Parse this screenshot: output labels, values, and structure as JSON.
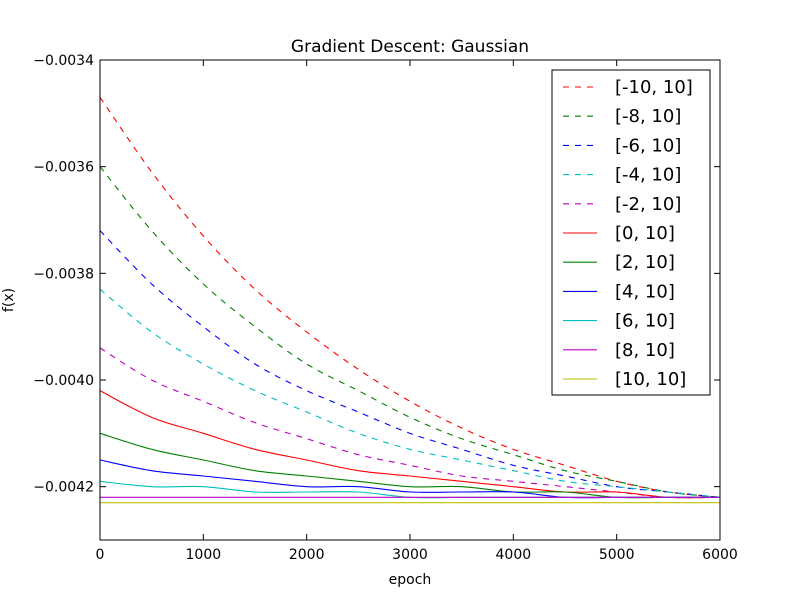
{
  "chart_data": {
    "type": "line",
    "title": "Gradient Descent: Gaussian",
    "xlabel": "epoch",
    "ylabel": "f(x)",
    "xlim": [
      0,
      6000
    ],
    "ylim": [
      -0.0043,
      -0.0034
    ],
    "xticks": [
      0,
      1000,
      2000,
      3000,
      4000,
      5000,
      6000
    ],
    "xtick_labels": [
      "0",
      "1000",
      "2000",
      "3000",
      "4000",
      "5000",
      "6000"
    ],
    "yticks": [
      -0.0034,
      -0.0036,
      -0.0038,
      -0.004,
      -0.0042
    ],
    "ytick_labels": [
      "−0.0034",
      "−0.0036",
      "−0.0038",
      "−0.0040",
      "−0.0042"
    ],
    "grid": false,
    "legend_position": "top-right",
    "x": [
      0,
      500,
      1000,
      1500,
      2000,
      2500,
      3000,
      3500,
      4000,
      4500,
      5000,
      5500,
      6000
    ],
    "series": [
      {
        "name": "[-10, 10]",
        "color": "#ff0000",
        "style": "dashed",
        "values": [
          -0.00347,
          -0.00361,
          -0.00373,
          -0.00383,
          -0.00391,
          -0.00398,
          -0.00404,
          -0.00409,
          -0.00413,
          -0.00416,
          -0.00419,
          -0.00421,
          -0.00422
        ]
      },
      {
        "name": "[-8, 10]",
        "color": "#008000",
        "style": "dashed",
        "values": [
          -0.0036,
          -0.00372,
          -0.00382,
          -0.0039,
          -0.00397,
          -0.00402,
          -0.00407,
          -0.00411,
          -0.00414,
          -0.00417,
          -0.00419,
          -0.00421,
          -0.00422
        ]
      },
      {
        "name": "[-6, 10]",
        "color": "#0000ff",
        "style": "dashed",
        "values": [
          -0.00372,
          -0.00382,
          -0.0039,
          -0.00397,
          -0.00402,
          -0.00406,
          -0.0041,
          -0.00413,
          -0.00416,
          -0.00418,
          -0.0042,
          -0.00421,
          -0.00422
        ]
      },
      {
        "name": "[-4, 10]",
        "color": "#00bfbf",
        "style": "dashed",
        "values": [
          -0.00383,
          -0.00391,
          -0.00397,
          -0.00402,
          -0.00406,
          -0.0041,
          -0.00413,
          -0.00415,
          -0.00417,
          -0.00419,
          -0.0042,
          -0.00421,
          -0.00422
        ]
      },
      {
        "name": "[-2, 10]",
        "color": "#bf00bf",
        "style": "dashed",
        "values": [
          -0.00394,
          -0.004,
          -0.00404,
          -0.00408,
          -0.00411,
          -0.00414,
          -0.00416,
          -0.00418,
          -0.00419,
          -0.0042,
          -0.00421,
          -0.00422,
          -0.00422
        ]
      },
      {
        "name": "[0, 10]",
        "color": "#ff0000",
        "style": "solid",
        "values": [
          -0.00402,
          -0.00407,
          -0.0041,
          -0.00413,
          -0.00415,
          -0.00417,
          -0.00418,
          -0.00419,
          -0.0042,
          -0.00421,
          -0.00421,
          -0.00422,
          -0.00422
        ]
      },
      {
        "name": "[2, 10]",
        "color": "#008000",
        "style": "solid",
        "values": [
          -0.0041,
          -0.00413,
          -0.00415,
          -0.00417,
          -0.00418,
          -0.00419,
          -0.0042,
          -0.0042,
          -0.00421,
          -0.00421,
          -0.00422,
          -0.00422,
          -0.00422
        ]
      },
      {
        "name": "[4, 10]",
        "color": "#0000ff",
        "style": "solid",
        "values": [
          -0.00415,
          -0.00417,
          -0.00418,
          -0.00419,
          -0.0042,
          -0.0042,
          -0.00421,
          -0.00421,
          -0.00421,
          -0.00422,
          -0.00422,
          -0.00422,
          -0.00422
        ]
      },
      {
        "name": "[6, 10]",
        "color": "#00bfbf",
        "style": "solid",
        "values": [
          -0.00419,
          -0.0042,
          -0.0042,
          -0.00421,
          -0.00421,
          -0.00421,
          -0.00422,
          -0.00422,
          -0.00422,
          -0.00422,
          -0.00422,
          -0.00422,
          -0.00422
        ]
      },
      {
        "name": "[8, 10]",
        "color": "#bf00bf",
        "style": "solid",
        "values": [
          -0.00422,
          -0.00422,
          -0.00422,
          -0.00422,
          -0.00422,
          -0.00422,
          -0.00422,
          -0.00422,
          -0.00422,
          -0.00422,
          -0.00422,
          -0.00422,
          -0.00422
        ]
      },
      {
        "name": "[10, 10]",
        "color": "#bfbf00",
        "style": "solid",
        "values": [
          -0.00423,
          -0.00423,
          -0.00423,
          -0.00423,
          -0.00423,
          -0.00423,
          -0.00423,
          -0.00423,
          -0.00423,
          -0.00423,
          -0.00423,
          -0.00423,
          -0.00423
        ]
      }
    ]
  }
}
